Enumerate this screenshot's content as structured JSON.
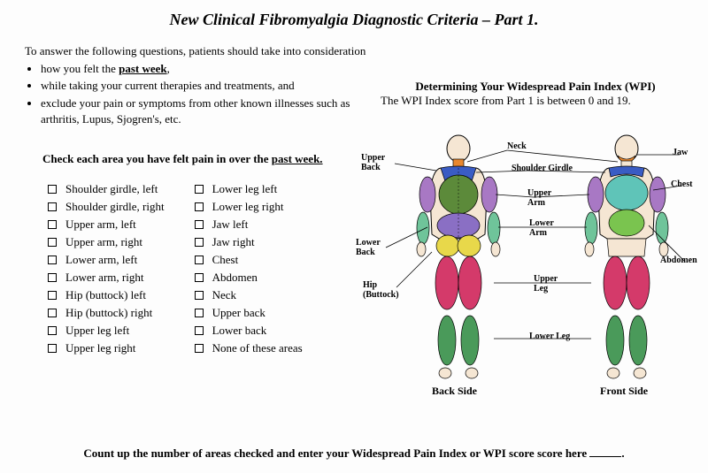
{
  "title": "New Clinical Fibromyalgia Diagnostic Criteria – Part 1.",
  "intro": {
    "lead": "To answer the following questions, patients should take into consideration",
    "bullets": [
      {
        "pre": "how you felt the ",
        "u": "past week",
        "post": ","
      },
      {
        "pre": "while taking your current therapies and treatments, and",
        "u": "",
        "post": ""
      },
      {
        "pre": "exclude your pain or symptoms from other known illnesses such as arthritis, Lupus, Sjogren's, etc.",
        "u": "",
        "post": ""
      }
    ]
  },
  "wpi": {
    "heading": "Determining Your Widespread Pain Index (WPI)",
    "sub": "The WPI Index score from Part 1 is between 0 and 19."
  },
  "check_heading": {
    "pre": "Check each area you have felt pain in over the ",
    "u": "past week."
  },
  "checklist": {
    "col1": [
      "Shoulder girdle, left",
      "Shoulder girdle, right",
      "Upper arm, left",
      "Upper arm, right",
      "Lower arm, left",
      "Lower arm, right",
      "Hip (buttock) left",
      "Hip (buttock) right",
      "Upper leg left",
      "Upper leg right"
    ],
    "col2": [
      "Lower leg left",
      "Lower leg right",
      "Jaw left",
      "Jaw right",
      "Chest",
      "Abdomen",
      "Neck",
      "Upper back",
      "Lower back",
      "None of these areas"
    ]
  },
  "diagram": {
    "colors": {
      "skin": "#f5e6d3",
      "outline": "#000000",
      "neck_jaw": "#e8872e",
      "shoulder": "#3a5cc4",
      "upper_back": "#5c8a3a",
      "chest": "#5fc4b8",
      "upper_arm": "#a878c4",
      "lower_arm": "#6fc49a",
      "lower_back": "#8a6fc4",
      "abdomen": "#7ac44f",
      "hip": "#e8d84a",
      "upper_leg": "#d43a6a",
      "lower_leg": "#4a9a5a"
    },
    "labels": {
      "back_title": "Back Side",
      "front_title": "Front Side",
      "upper_back": "Upper\nBack",
      "lower_back": "Lower\nBack",
      "hip": "Hip\n(Buttock)",
      "neck": "Neck",
      "shoulder_girdle": "Shoulder Girdle",
      "upper_arm": "Upper\nArm",
      "lower_arm": "Lower\nArm",
      "upper_leg": "Upper\nLeg",
      "lower_leg": "Lower Leg",
      "jaw": "Jaw",
      "chest": "Chest",
      "abdomen": "Abdomen"
    }
  },
  "bottom": "Count up the number of areas checked and enter your Widespread Pain Index or WPI score score here"
}
